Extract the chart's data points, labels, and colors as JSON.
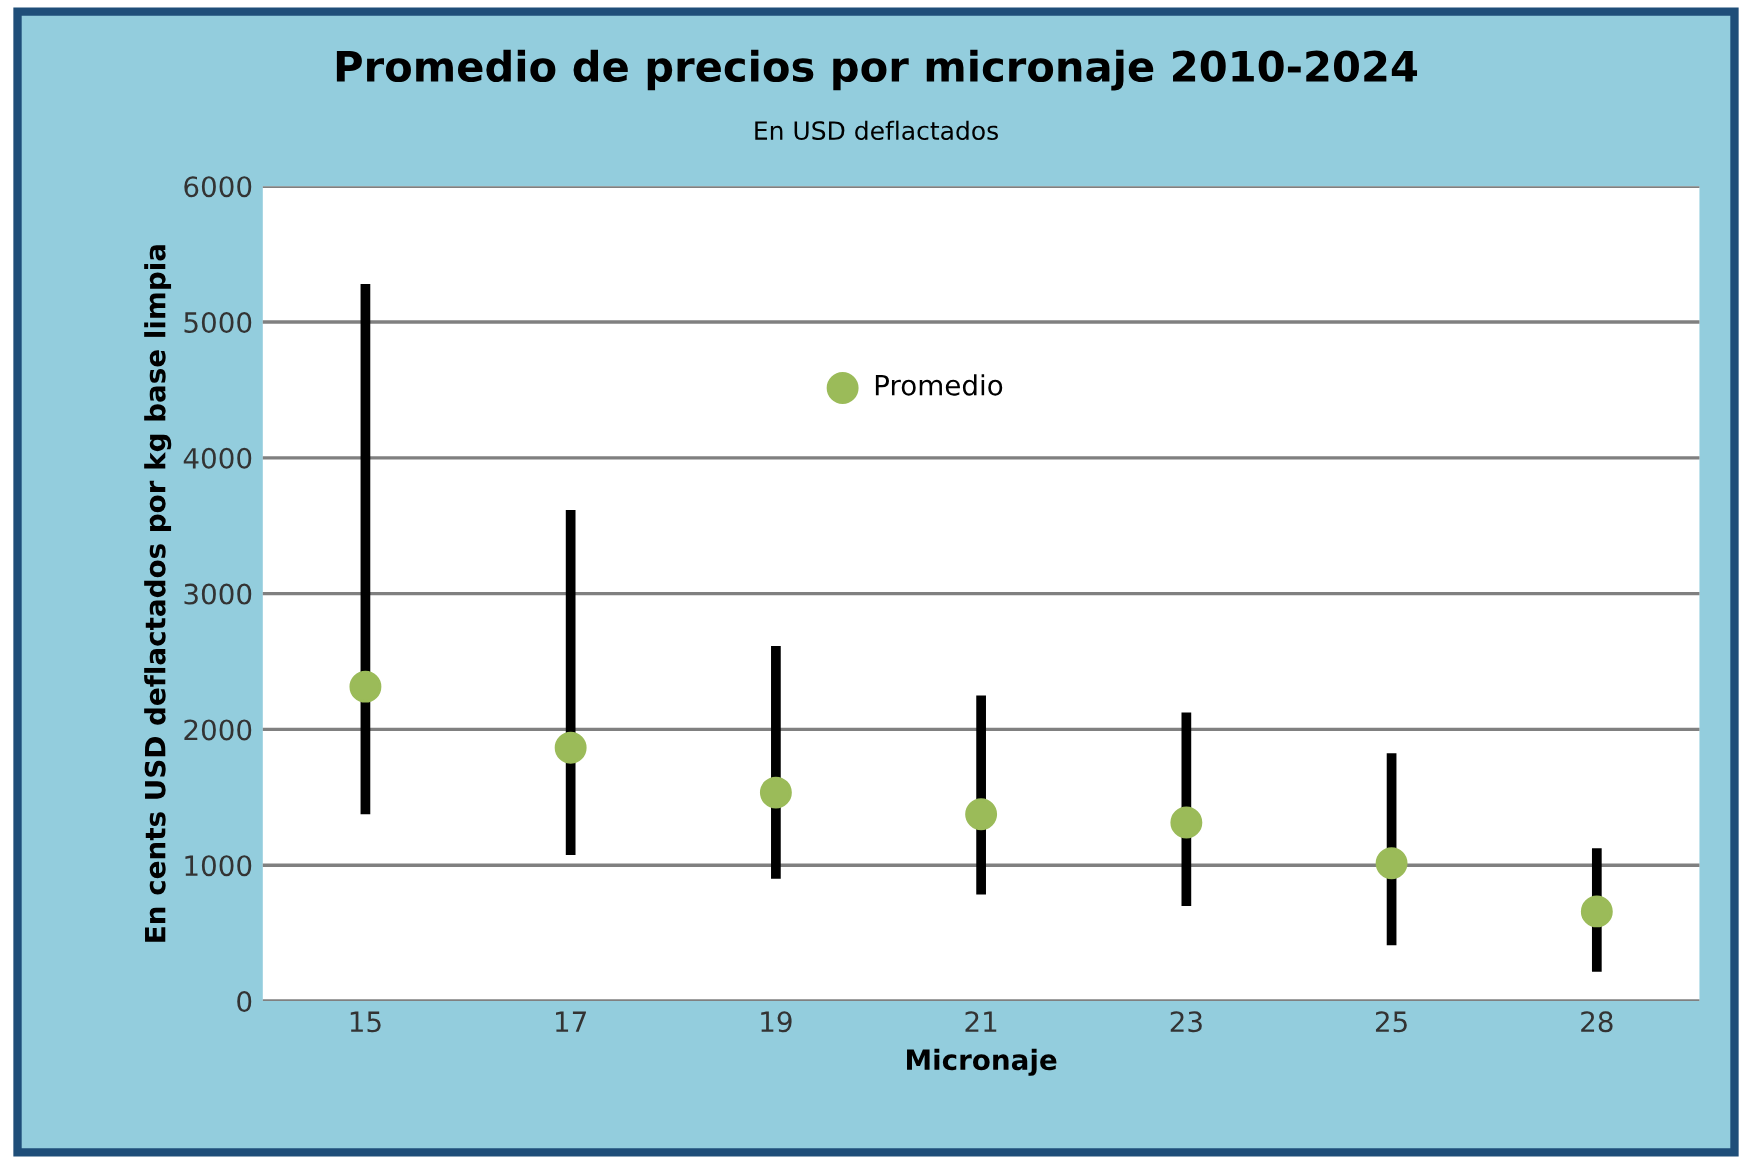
{
  "chart_data": {
    "type": "scatter",
    "title": "Promedio de precios por micronaje 2010-2024",
    "subtitle": "En USD deflactados",
    "xlabel": "Micronaje",
    "ylabel": "En cents USD deflactados por kg base limpia",
    "categories": [
      "15",
      "17",
      "19",
      "21",
      "23",
      "25",
      "28"
    ],
    "series": [
      {
        "name": "Promedio",
        "color": "#9bbb59",
        "values": [
          2315,
          1865,
          1535,
          1375,
          1315,
          1015,
          660
        ],
        "errors": [
          [
            1375,
            5280
          ],
          [
            1075,
            3615
          ],
          [
            900,
            2615
          ],
          [
            785,
            2250
          ],
          [
            700,
            2125
          ],
          [
            410,
            1825
          ],
          [
            215,
            1125
          ]
        ]
      }
    ],
    "ylim": [
      0,
      6000
    ],
    "yticks": [
      0,
      1000,
      2000,
      3000,
      4000,
      5000,
      6000
    ],
    "grid": "y",
    "legend": "top",
    "marker": "circle"
  }
}
